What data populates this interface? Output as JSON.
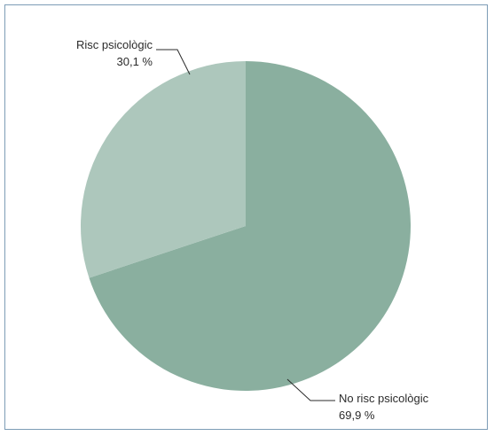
{
  "chart_data": {
    "type": "pie",
    "title": "",
    "categories": [
      "Risc psicològic",
      "No risc psicològic"
    ],
    "values": [
      30.1,
      69.9
    ],
    "value_labels": [
      "30,1 %",
      "69,9 %"
    ],
    "colors": [
      "#adc7bc",
      "#8aaf9f"
    ],
    "legend": "none"
  },
  "colors": {
    "frame_border": "#7d9cb6",
    "leader_line": "#2b2b2b"
  }
}
